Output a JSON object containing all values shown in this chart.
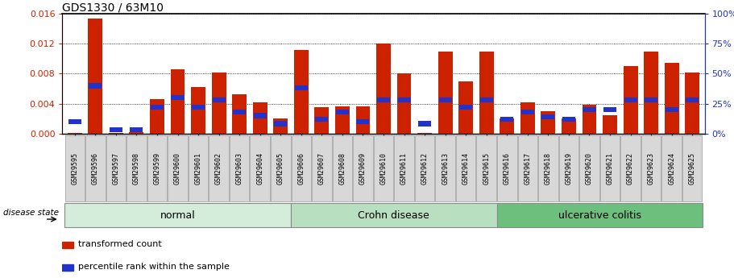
{
  "title": "GDS1330 / 63M10",
  "samples": [
    "GSM29595",
    "GSM29596",
    "GSM29597",
    "GSM29598",
    "GSM29599",
    "GSM29600",
    "GSM29601",
    "GSM29602",
    "GSM29603",
    "GSM29604",
    "GSM29605",
    "GSM29606",
    "GSM29607",
    "GSM29608",
    "GSM29609",
    "GSM29610",
    "GSM29611",
    "GSM29612",
    "GSM29613",
    "GSM29614",
    "GSM29615",
    "GSM29616",
    "GSM29617",
    "GSM29618",
    "GSM29619",
    "GSM29620",
    "GSM29621",
    "GSM29622",
    "GSM29623",
    "GSM29624",
    "GSM29625"
  ],
  "transformed_count": [
    8e-05,
    0.01535,
    5e-05,
    0.00015,
    0.0046,
    0.0086,
    0.0062,
    0.0082,
    0.0052,
    0.0042,
    0.002,
    0.0112,
    0.0035,
    0.0036,
    0.0036,
    0.012,
    0.008,
    8e-05,
    0.011,
    0.007,
    0.011,
    0.002,
    0.0042,
    0.003,
    0.002,
    0.0038,
    0.0024,
    0.009,
    0.011,
    0.0095,
    0.0082
  ],
  "percentile_rank": [
    10,
    40,
    2,
    2,
    22,
    30,
    22,
    28,
    18,
    15,
    8,
    38,
    12,
    18,
    10,
    28,
    28,
    8,
    28,
    22,
    28,
    12,
    18,
    14,
    12,
    20,
    20,
    28,
    28,
    20,
    28
  ],
  "groups": [
    {
      "label": "normal",
      "start": 0,
      "end": 10,
      "color": "#d4edda"
    },
    {
      "label": "Crohn disease",
      "start": 11,
      "end": 20,
      "color": "#b8dfc0"
    },
    {
      "label": "ulcerative colitis",
      "start": 21,
      "end": 30,
      "color": "#6dbf7e"
    }
  ],
  "ylim_left": [
    0,
    0.016
  ],
  "ylim_right": [
    0,
    100
  ],
  "yticks_left": [
    0,
    0.004,
    0.008,
    0.012,
    0.016
  ],
  "yticks_right": [
    0,
    25,
    50,
    75,
    100
  ],
  "bar_color": "#cc2200",
  "blue_color": "#2233cc",
  "legend_labels": [
    "transformed count",
    "percentile rank within the sample"
  ],
  "disease_state_label": "disease state"
}
